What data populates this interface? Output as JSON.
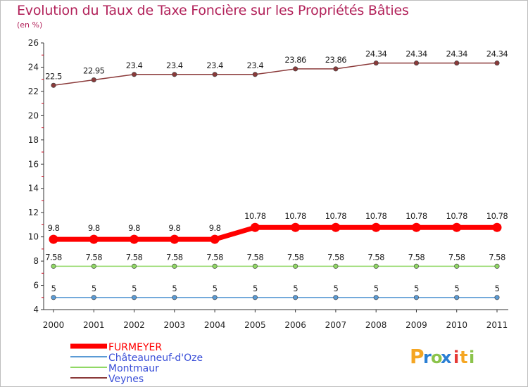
{
  "chart_data": {
    "type": "line",
    "title": "Evolution du Taux de Taxe Foncière sur les Propriétés Bâties",
    "unit_label": "(en %)",
    "x": [
      "2000",
      "2001",
      "2002",
      "2003",
      "2004",
      "2005",
      "2006",
      "2007",
      "2008",
      "2009",
      "2010",
      "2011"
    ],
    "ylim": [
      4,
      26
    ],
    "yticks": [
      4,
      6,
      8,
      10,
      12,
      14,
      16,
      18,
      20,
      22,
      24,
      26
    ],
    "grid": false,
    "legend_position": "bottom-left",
    "series": [
      {
        "name": "FURMEYER",
        "color": "#ff0000",
        "legend_text_color": "#ff0000",
        "values": [
          9.8,
          9.8,
          9.8,
          9.8,
          9.8,
          10.78,
          10.78,
          10.78,
          10.78,
          10.78,
          10.78,
          10.78
        ],
        "labels": [
          "9.8",
          "9.8",
          "9.8",
          "9.8",
          "9.8",
          "10.78",
          "10.78",
          "10.78",
          "10.78",
          "10.78",
          "10.78",
          "10.78"
        ]
      },
      {
        "name": "Châteauneuf-d'Oze",
        "color": "#5b9bd5",
        "legend_text_color": "#3a4fd8",
        "values": [
          5,
          5,
          5,
          5,
          5,
          5,
          5,
          5,
          5,
          5,
          5,
          5
        ],
        "labels": [
          "5",
          "5",
          "5",
          "5",
          "5",
          "5",
          "5",
          "5",
          "5",
          "5",
          "5",
          "5"
        ]
      },
      {
        "name": "Montmaur",
        "color": "#90d864",
        "legend_text_color": "#3a4fd8",
        "values": [
          7.58,
          7.58,
          7.58,
          7.58,
          7.58,
          7.58,
          7.58,
          7.58,
          7.58,
          7.58,
          7.58,
          7.58
        ],
        "labels": [
          "7.58",
          "7.58",
          "7.58",
          "7.58",
          "7.58",
          "7.58",
          "7.58",
          "7.58",
          "7.58",
          "7.58",
          "7.58",
          "7.58"
        ]
      },
      {
        "name": "Veynes",
        "color": "#8b3a3a",
        "legend_text_color": "#3a4fd8",
        "values": [
          22.5,
          22.95,
          23.4,
          23.4,
          23.4,
          23.4,
          23.86,
          23.86,
          24.34,
          24.34,
          24.34,
          24.34
        ],
        "labels": [
          "22.5",
          "22.95",
          "23.4",
          "23.4",
          "23.4",
          "23.4",
          "23.86",
          "23.86",
          "24.34",
          "24.34",
          "24.34",
          "24.34"
        ]
      }
    ]
  },
  "logo": {
    "letters": [
      "P",
      "r",
      "o",
      "x",
      "i",
      "t",
      "i"
    ],
    "colors": [
      "#f5a623",
      "#2a7fd4",
      "#8bc34a",
      "#2a7fd4",
      "#e53935",
      "#f5a623",
      "#8bc34a"
    ]
  }
}
